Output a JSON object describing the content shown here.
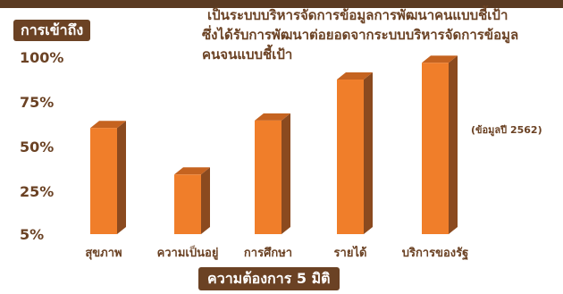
{
  "description": {
    "line1": "เป็นระบบบริหารจัดการข้อมูลการพัฒนาคนแบบชี้เป้า",
    "line2": "ซึ่งได้รับการพัฒนาต่อยอดจากระบบบริหารจัดการข้อมูล",
    "line3": "คนจนแบบชี้เป้า"
  },
  "note": "(ข้อมูลปี 2562)",
  "colors": {
    "bar_front": "#f07e2a",
    "bar_side": "#8b4a1f",
    "bar_top": "#c56320",
    "label_box": "#6b4224",
    "text": "#6b4224"
  },
  "chart_data": {
    "type": "bar",
    "title": "",
    "ylabel": "การเข้าถึง",
    "xlabel": "ความต้องการ 5 มิติ",
    "y_ticks": [
      "100%",
      "75%",
      "50%",
      "25%",
      "5%"
    ],
    "categories": [
      "สุขภาพ",
      "ความเป็นอยู่",
      "การศึกษา",
      "รายได้",
      "บริการของรัฐ"
    ],
    "values": [
      62,
      37,
      66,
      88,
      97
    ],
    "ylim": [
      5,
      100
    ],
    "grid": false,
    "legend": "none"
  }
}
